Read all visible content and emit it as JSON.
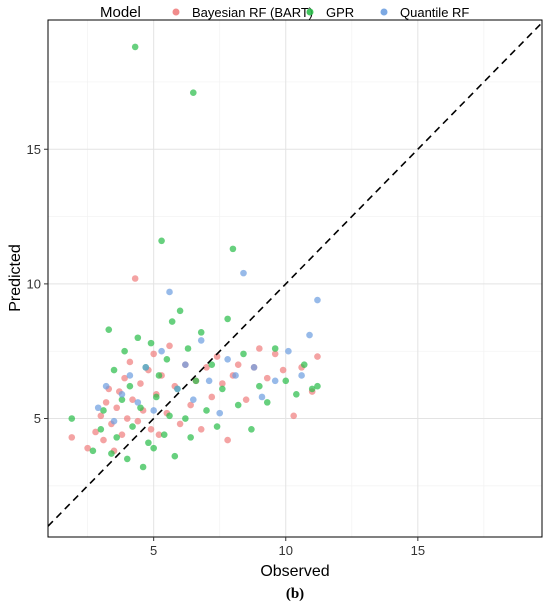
{
  "chart_data": {
    "type": "scatter",
    "title": "",
    "xlabel": "Observed",
    "ylabel": "Predicted",
    "xlim": [
      1.0,
      19.7
    ],
    "ylim": [
      0.6,
      19.8
    ],
    "xticks": [
      5,
      10,
      15
    ],
    "yticks": [
      5,
      10,
      15
    ],
    "grid": true,
    "reference_line": "y = x (dashed)",
    "legend": {
      "title": "Model",
      "placement": "top"
    },
    "caption": "(b)",
    "series": [
      {
        "name": "Bayesian RF (BART)",
        "color": "#F08080",
        "points": [
          [
            1.9,
            4.3
          ],
          [
            2.5,
            3.9
          ],
          [
            2.8,
            4.5
          ],
          [
            3.0,
            5.1
          ],
          [
            3.1,
            4.2
          ],
          [
            3.2,
            5.6
          ],
          [
            3.3,
            6.1
          ],
          [
            3.4,
            4.8
          ],
          [
            3.5,
            3.8
          ],
          [
            3.6,
            5.4
          ],
          [
            3.7,
            6.0
          ],
          [
            3.8,
            4.4
          ],
          [
            3.9,
            6.5
          ],
          [
            4.0,
            5.0
          ],
          [
            4.1,
            7.1
          ],
          [
            4.2,
            5.7
          ],
          [
            4.3,
            10.2
          ],
          [
            4.4,
            4.9
          ],
          [
            4.5,
            6.3
          ],
          [
            4.6,
            5.3
          ],
          [
            4.8,
            6.8
          ],
          [
            4.9,
            4.6
          ],
          [
            5.0,
            7.4
          ],
          [
            5.1,
            5.9
          ],
          [
            5.2,
            4.4
          ],
          [
            5.3,
            6.6
          ],
          [
            5.5,
            5.2
          ],
          [
            5.6,
            7.7
          ],
          [
            5.8,
            6.2
          ],
          [
            6.0,
            4.8
          ],
          [
            6.2,
            7.0
          ],
          [
            6.4,
            5.5
          ],
          [
            6.6,
            6.4
          ],
          [
            6.8,
            4.6
          ],
          [
            7.0,
            6.9
          ],
          [
            7.2,
            5.8
          ],
          [
            7.4,
            7.3
          ],
          [
            7.6,
            6.3
          ],
          [
            7.8,
            4.2
          ],
          [
            8.0,
            6.6
          ],
          [
            8.2,
            7.0
          ],
          [
            8.5,
            5.7
          ],
          [
            8.8,
            6.9
          ],
          [
            9.0,
            7.6
          ],
          [
            9.3,
            6.5
          ],
          [
            9.6,
            7.4
          ],
          [
            9.9,
            6.8
          ],
          [
            10.3,
            5.1
          ],
          [
            10.6,
            6.9
          ],
          [
            11.0,
            6.0
          ],
          [
            11.2,
            7.3
          ]
        ]
      },
      {
        "name": "GPR",
        "color": "#2DBE4C",
        "points": [
          [
            1.9,
            5.0
          ],
          [
            2.7,
            3.8
          ],
          [
            3.0,
            4.6
          ],
          [
            3.1,
            5.3
          ],
          [
            3.3,
            8.3
          ],
          [
            3.4,
            3.7
          ],
          [
            3.5,
            6.8
          ],
          [
            3.6,
            4.3
          ],
          [
            3.8,
            5.7
          ],
          [
            3.9,
            7.5
          ],
          [
            4.0,
            3.5
          ],
          [
            4.1,
            6.2
          ],
          [
            4.2,
            4.7
          ],
          [
            4.3,
            18.8
          ],
          [
            4.4,
            8.0
          ],
          [
            4.5,
            5.4
          ],
          [
            4.6,
            3.2
          ],
          [
            4.7,
            6.9
          ],
          [
            4.8,
            4.1
          ],
          [
            4.9,
            7.8
          ],
          [
            5.0,
            3.9
          ],
          [
            5.1,
            5.8
          ],
          [
            5.2,
            6.6
          ],
          [
            5.3,
            11.6
          ],
          [
            5.4,
            4.4
          ],
          [
            5.5,
            7.2
          ],
          [
            5.6,
            5.1
          ],
          [
            5.7,
            8.6
          ],
          [
            5.8,
            3.6
          ],
          [
            5.9,
            6.1
          ],
          [
            6.0,
            9.0
          ],
          [
            6.2,
            5.0
          ],
          [
            6.3,
            7.6
          ],
          [
            6.4,
            4.3
          ],
          [
            6.5,
            17.1
          ],
          [
            6.6,
            6.4
          ],
          [
            6.8,
            8.2
          ],
          [
            7.0,
            5.3
          ],
          [
            7.2,
            7.0
          ],
          [
            7.4,
            4.7
          ],
          [
            7.6,
            6.1
          ],
          [
            7.8,
            8.7
          ],
          [
            8.0,
            11.3
          ],
          [
            8.2,
            5.5
          ],
          [
            8.4,
            7.4
          ],
          [
            8.7,
            4.6
          ],
          [
            9.0,
            6.2
          ],
          [
            9.3,
            5.6
          ],
          [
            9.6,
            7.6
          ],
          [
            10.0,
            6.4
          ],
          [
            10.4,
            5.9
          ],
          [
            10.7,
            7.0
          ],
          [
            11.0,
            6.1
          ],
          [
            11.2,
            6.2
          ]
        ]
      },
      {
        "name": "Quantile RF",
        "color": "#6FA0E0",
        "points": [
          [
            2.9,
            5.4
          ],
          [
            3.2,
            6.2
          ],
          [
            3.5,
            4.9
          ],
          [
            3.8,
            5.9
          ],
          [
            4.1,
            6.6
          ],
          [
            4.4,
            5.6
          ],
          [
            4.7,
            6.9
          ],
          [
            5.0,
            5.3
          ],
          [
            5.3,
            7.5
          ],
          [
            5.6,
            9.7
          ],
          [
            5.9,
            6.1
          ],
          [
            6.2,
            7.0
          ],
          [
            6.5,
            5.7
          ],
          [
            6.8,
            7.9
          ],
          [
            7.1,
            6.4
          ],
          [
            7.5,
            5.2
          ],
          [
            7.8,
            7.2
          ],
          [
            8.1,
            6.6
          ],
          [
            8.4,
            10.4
          ],
          [
            8.8,
            6.9
          ],
          [
            9.1,
            5.8
          ],
          [
            9.6,
            6.4
          ],
          [
            10.1,
            7.5
          ],
          [
            10.6,
            6.6
          ],
          [
            10.9,
            8.1
          ],
          [
            11.2,
            9.4
          ]
        ]
      }
    ]
  }
}
